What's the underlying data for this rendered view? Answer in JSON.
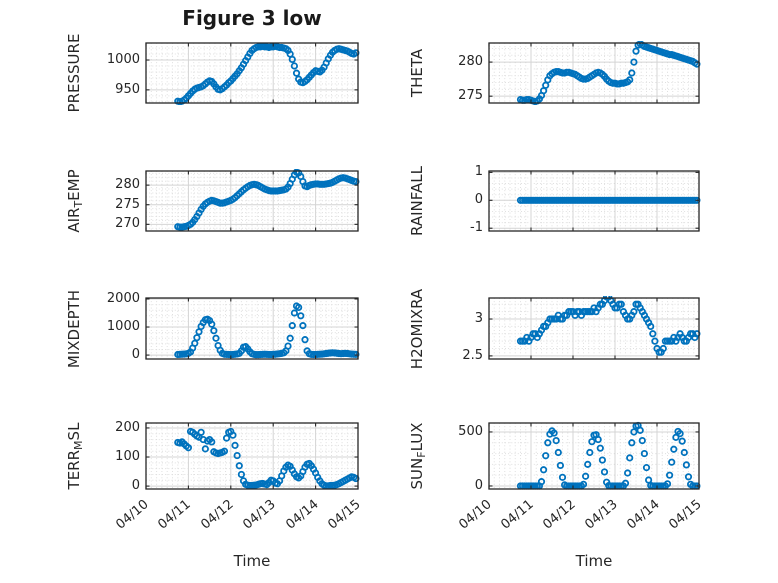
{
  "title": "Figure 3 low",
  "marker": {
    "shape": "open-circle",
    "color": "#0072BD",
    "radius": 2.7,
    "stroke_width": 1.8
  },
  "colors": {
    "axis": "#262626",
    "grid_major": "#d4d4d4",
    "grid_minor": "#dcdcdc",
    "text": "#262626",
    "background": "#ffffff"
  },
  "x_axis": {
    "label": "Time",
    "range": [
      0,
      5
    ],
    "minor_step": 0.125,
    "ticks": [
      {
        "value": 0,
        "label": "04/10"
      },
      {
        "value": 1,
        "label": "04/11"
      },
      {
        "value": 2,
        "label": "04/12"
      },
      {
        "value": 3,
        "label": "04/13"
      },
      {
        "value": 4,
        "label": "04/14"
      },
      {
        "value": 5,
        "label": "04/15"
      }
    ]
  },
  "time_days": [
    0.75,
    0.8,
    0.85,
    0.9,
    0.95,
    1,
    1.05,
    1.1,
    1.15,
    1.2,
    1.25,
    1.3,
    1.35,
    1.4,
    1.45,
    1.5,
    1.55,
    1.6,
    1.65,
    1.7,
    1.75,
    1.8,
    1.85,
    1.9,
    1.95,
    2,
    2.05,
    2.1,
    2.15,
    2.2,
    2.25,
    2.3,
    2.35,
    2.4,
    2.45,
    2.5,
    2.55,
    2.6,
    2.65,
    2.7,
    2.75,
    2.8,
    2.85,
    2.9,
    2.95,
    3,
    3.05,
    3.1,
    3.15,
    3.2,
    3.25,
    3.3,
    3.35,
    3.4,
    3.45,
    3.5,
    3.55,
    3.6,
    3.65,
    3.7,
    3.75,
    3.8,
    3.85,
    3.9,
    3.95,
    4,
    4.05,
    4.1,
    4.15,
    4.2,
    4.25,
    4.3,
    4.35,
    4.4,
    4.45,
    4.5,
    4.55,
    4.6,
    4.65,
    4.7,
    4.75,
    4.8,
    4.85,
    4.9,
    4.95
  ],
  "chart_data": [
    {
      "id": "pressure",
      "row": 0,
      "col": 0,
      "type": "scatter",
      "ylabel": "PRESSURE",
      "ylabel_parts": [
        {
          "text": "PRESSURE",
          "sub": false
        }
      ],
      "yticks": [
        {
          "value": 950,
          "label": "950"
        },
        {
          "value": 1000,
          "label": "1000"
        }
      ],
      "ylim": [
        928,
        1028.5
      ],
      "y": [
        931,
        930,
        931,
        933,
        936,
        940,
        944,
        948,
        951,
        953,
        954,
        955,
        957,
        960,
        963,
        965,
        964,
        960,
        955,
        951,
        950,
        952,
        955,
        958,
        962,
        965,
        969,
        973,
        977,
        982,
        987,
        993,
        999,
        1005,
        1011,
        1016,
        1019,
        1021,
        1022,
        1022,
        1023,
        1022,
        1022,
        1021,
        1022,
        1022,
        1023,
        1022,
        1021,
        1021,
        1020,
        1019,
        1016,
        1010,
        1001,
        990,
        978,
        968,
        963,
        962,
        964,
        967,
        971,
        975,
        979,
        982,
        981,
        980,
        983,
        988,
        995,
        1002,
        1008,
        1013,
        1016,
        1018,
        1019,
        1018,
        1017,
        1016,
        1015,
        1013,
        1011,
        1010,
        1012
      ]
    },
    {
      "id": "theta",
      "row": 0,
      "col": 1,
      "type": "scatter",
      "ylabel": "THETA",
      "ylabel_parts": [
        {
          "text": "THETA",
          "sub": false
        }
      ],
      "yticks": [
        {
          "value": 275,
          "label": "275"
        },
        {
          "value": 280,
          "label": "280"
        }
      ],
      "ylim": [
        274,
        282.8
      ],
      "y": [
        274.5,
        274.4,
        274.4,
        274.5,
        274.5,
        274.4,
        274.3,
        274.2,
        274.3,
        274.6,
        275.1,
        275.8,
        276.6,
        277.4,
        278,
        278.3,
        278.5,
        278.6,
        278.6,
        278.5,
        278.4,
        278.4,
        278.5,
        278.5,
        278.4,
        278.3,
        278.2,
        278,
        277.8,
        277.6,
        277.5,
        277.5,
        277.6,
        277.8,
        278,
        278.2,
        278.4,
        278.5,
        278.4,
        278.2,
        277.9,
        277.5,
        277.2,
        277,
        276.9,
        276.9,
        276.8,
        276.8,
        276.9,
        276.9,
        277,
        277.1,
        277.4,
        278.4,
        280,
        281.6,
        282.5,
        282.7,
        282.5,
        282.3,
        282.2,
        282.1,
        282,
        281.9,
        281.8,
        281.7,
        281.6,
        281.5,
        281.4,
        281.3,
        281.2,
        281.1,
        281.1,
        281,
        280.9,
        280.8,
        280.7,
        280.6,
        280.5,
        280.4,
        280.3,
        280.2,
        280.1,
        279.9,
        279.7
      ]
    },
    {
      "id": "air_temp",
      "row": 1,
      "col": 0,
      "type": "scatter",
      "ylabel": "AIR_TEMP",
      "ylabel_parts": [
        {
          "text": "AIR",
          "sub": false
        },
        {
          "text": "T",
          "sub": true
        },
        {
          "text": "EMP",
          "sub": false
        }
      ],
      "yticks": [
        {
          "value": 270,
          "label": "270"
        },
        {
          "value": 275,
          "label": "275"
        },
        {
          "value": 280,
          "label": "280"
        }
      ],
      "ylim": [
        268.3,
        283.6
      ],
      "y": [
        269.4,
        269.3,
        269.3,
        269.4,
        269.5,
        269.7,
        270,
        270.5,
        271.2,
        272,
        272.9,
        273.8,
        274.6,
        275.2,
        275.6,
        275.9,
        276.1,
        276,
        275.8,
        275.6,
        275.4,
        275.4,
        275.5,
        275.7,
        275.9,
        276.1,
        276.4,
        276.8,
        277.3,
        277.8,
        278.3,
        278.8,
        279.2,
        279.6,
        279.9,
        280.1,
        280.2,
        280.1,
        279.9,
        279.6,
        279.3,
        279,
        278.8,
        278.6,
        278.5,
        278.5,
        278.5,
        278.5,
        278.6,
        278.7,
        278.8,
        279,
        279.5,
        280.4,
        281.5,
        282.6,
        283.3,
        283.1,
        282.2,
        280.9,
        279.8,
        279.6,
        279.9,
        280.1,
        280.2,
        280.3,
        280.3,
        280.2,
        280.2,
        280.2,
        280.3,
        280.4,
        280.5,
        280.7,
        281,
        281.3,
        281.6,
        281.8,
        281.9,
        281.8,
        281.6,
        281.4,
        281.2,
        281,
        280.9
      ]
    },
    {
      "id": "rainfall",
      "row": 1,
      "col": 1,
      "type": "scatter",
      "ylabel": "RAINFALL",
      "ylabel_parts": [
        {
          "text": "RAINFALL",
          "sub": false
        }
      ],
      "yticks": [
        {
          "value": -1,
          "label": "-1"
        },
        {
          "value": 0,
          "label": "0"
        },
        {
          "value": 1,
          "label": "1"
        }
      ],
      "ylim": [
        -1.1,
        1.05
      ],
      "y": [
        0,
        0,
        0,
        0,
        0,
        0,
        0,
        0,
        0,
        0,
        0,
        0,
        0,
        0,
        0,
        0,
        0,
        0,
        0,
        0,
        0,
        0,
        0,
        0,
        0,
        0,
        0,
        0,
        0,
        0,
        0,
        0,
        0,
        0,
        0,
        0,
        0,
        0,
        0,
        0,
        0,
        0,
        0,
        0,
        0,
        0,
        0,
        0,
        0,
        0,
        0,
        0,
        0,
        0,
        0,
        0,
        0,
        0,
        0,
        0,
        0,
        0,
        0,
        0,
        0,
        0,
        0,
        0,
        0,
        0,
        0,
        0,
        0,
        0,
        0,
        0,
        0,
        0,
        0,
        0,
        0,
        0,
        0,
        0,
        0
      ]
    },
    {
      "id": "mixdepth",
      "row": 2,
      "col": 0,
      "type": "scatter",
      "ylabel": "MIXDEPTH",
      "ylabel_parts": [
        {
          "text": "MIXDEPTH",
          "sub": false
        }
      ],
      "yticks": [
        {
          "value": 0,
          "label": "0"
        },
        {
          "value": 1000,
          "label": "1000"
        },
        {
          "value": 2000,
          "label": "2000"
        }
      ],
      "ylim": [
        -140,
        2035
      ],
      "y": [
        20,
        25,
        30,
        35,
        45,
        60,
        110,
        250,
        420,
        620,
        830,
        1020,
        1160,
        1260,
        1280,
        1230,
        1100,
        870,
        600,
        340,
        170,
        60,
        30,
        25,
        20,
        15,
        20,
        30,
        40,
        60,
        150,
        280,
        300,
        220,
        120,
        50,
        25,
        15,
        15,
        20,
        25,
        30,
        25,
        20,
        20,
        25,
        30,
        40,
        50,
        60,
        80,
        150,
        320,
        600,
        1050,
        1500,
        1750,
        1700,
        1400,
        1050,
        550,
        150,
        50,
        25,
        20,
        20,
        25,
        30,
        35,
        45,
        55,
        65,
        75,
        80,
        75,
        65,
        55,
        50,
        55,
        60,
        55,
        45,
        35,
        30,
        25
      ]
    },
    {
      "id": "h2omixra",
      "row": 2,
      "col": 1,
      "type": "scatter",
      "ylabel": "H2OMIXRA",
      "ylabel_parts": [
        {
          "text": "H2OMIXRA",
          "sub": false
        }
      ],
      "yticks": [
        {
          "value": 2.5,
          "label": "2.5"
        },
        {
          "value": 3,
          "label": "3"
        }
      ],
      "ylim": [
        2.458,
        3.285
      ],
      "y": [
        2.7,
        2.7,
        2.7,
        2.75,
        2.7,
        2.75,
        2.8,
        2.8,
        2.75,
        2.8,
        2.85,
        2.9,
        2.9,
        2.95,
        3,
        3,
        3,
        3,
        3.05,
        3,
        3,
        3.05,
        3.05,
        3.1,
        3.1,
        3.1,
        3.05,
        3.1,
        3.1,
        3.05,
        3.1,
        3.1,
        3.1,
        3.1,
        3.1,
        3.15,
        3.1,
        3.15,
        3.2,
        3.2,
        3.25,
        3.3,
        3.3,
        3.25,
        3.2,
        3.15,
        3.15,
        3.2,
        3.2,
        3.1,
        3.05,
        3,
        3,
        3.05,
        3.1,
        3.2,
        3.2,
        3.15,
        3.1,
        3.05,
        3,
        2.95,
        2.9,
        2.8,
        2.7,
        2.6,
        2.55,
        2.55,
        2.6,
        2.7,
        2.7,
        2.7,
        2.7,
        2.75,
        2.7,
        2.75,
        2.8,
        2.75,
        2.7,
        2.7,
        2.75,
        2.8,
        2.8,
        2.75,
        2.8
      ]
    },
    {
      "id": "terr_msl",
      "row": 3,
      "col": 0,
      "type": "scatter",
      "ylabel": "TERR_MSL",
      "ylabel_parts": [
        {
          "text": "TERR",
          "sub": false
        },
        {
          "text": "M",
          "sub": true
        },
        {
          "text": "SL",
          "sub": false
        }
      ],
      "yticks": [
        {
          "value": 0,
          "label": "0"
        },
        {
          "value": 100,
          "label": "100"
        },
        {
          "value": 200,
          "label": "200"
        }
      ],
      "ylim": [
        -10,
        217
      ],
      "y": [
        150,
        148,
        152,
        145,
        138,
        132,
        188,
        185,
        178,
        172,
        168,
        185,
        160,
        128,
        155,
        160,
        152,
        118,
        114,
        112,
        114,
        116,
        120,
        165,
        185,
        188,
        175,
        140,
        105,
        70,
        40,
        18,
        6,
        3,
        2,
        2,
        3,
        4,
        6,
        8,
        9,
        7,
        5,
        12,
        20,
        18,
        10,
        8,
        18,
        35,
        52,
        65,
        72,
        68,
        55,
        42,
        32,
        28,
        35,
        50,
        65,
        75,
        78,
        70,
        58,
        45,
        30,
        18,
        8,
        3,
        1,
        1,
        2,
        2,
        3,
        5,
        8,
        12,
        16,
        20,
        24,
        28,
        32,
        30,
        26
      ]
    },
    {
      "id": "sun_flux",
      "row": 3,
      "col": 1,
      "type": "scatter",
      "ylabel": "SUN_FLUX",
      "ylabel_parts": [
        {
          "text": "SUN",
          "sub": false
        },
        {
          "text": "F",
          "sub": true
        },
        {
          "text": "LUX",
          "sub": false
        }
      ],
      "yticks": [
        {
          "value": 0,
          "label": "0"
        },
        {
          "value": 500,
          "label": "500"
        }
      ],
      "ylim": [
        -28,
        583
      ],
      "y": [
        0,
        0,
        0,
        0,
        0,
        0,
        0,
        0,
        0,
        0,
        40,
        150,
        280,
        400,
        480,
        510,
        490,
        420,
        310,
        190,
        80,
        10,
        0,
        0,
        0,
        0,
        0,
        0,
        0,
        0,
        15,
        90,
        200,
        310,
        410,
        470,
        475,
        430,
        350,
        240,
        130,
        35,
        3,
        0,
        0,
        0,
        0,
        0,
        0,
        0,
        25,
        120,
        260,
        400,
        500,
        555,
        560,
        515,
        420,
        300,
        170,
        55,
        5,
        0,
        0,
        0,
        0,
        0,
        0,
        0,
        20,
        100,
        220,
        340,
        450,
        505,
        485,
        415,
        310,
        195,
        85,
        15,
        0,
        0,
        0
      ]
    }
  ]
}
